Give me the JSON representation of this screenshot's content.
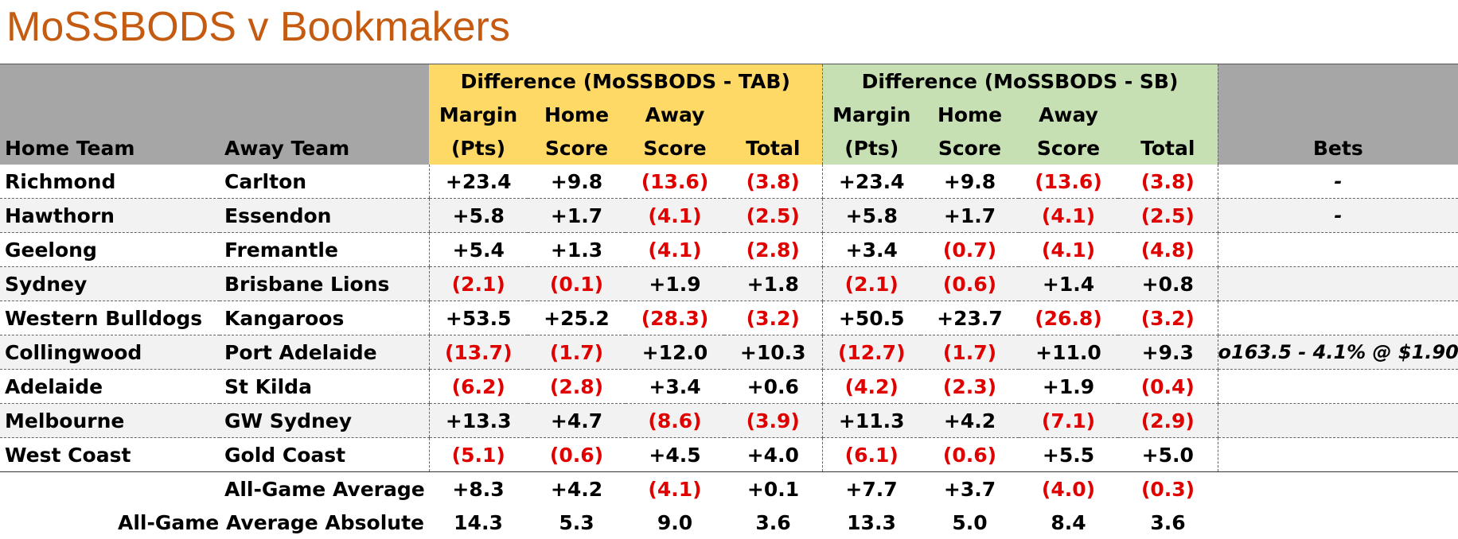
{
  "title": "MoSSBODS v Bookmakers",
  "headers": {
    "group_tab": "Difference (MoSSBODS - TAB)",
    "group_sb": "Difference (MoSSBODS - SB)",
    "margin_top": "Margin",
    "margin_bottom": "(Pts)",
    "home_top": "Home",
    "home_bottom": "Score",
    "away_top": "Away",
    "away_bottom": "Score",
    "total": "Total",
    "home_team": "Home Team",
    "away_team": "Away Team",
    "bets": "Bets"
  },
  "rows": [
    {
      "home": "Richmond",
      "away": "Carlton",
      "tab": [
        "+23.4",
        "+9.8",
        "(13.6)",
        "(3.8)"
      ],
      "sb": [
        "+23.4",
        "+9.8",
        "(13.6)",
        "(3.8)"
      ],
      "bets": "-"
    },
    {
      "home": "Hawthorn",
      "away": "Essendon",
      "tab": [
        "+5.8",
        "+1.7",
        "(4.1)",
        "(2.5)"
      ],
      "sb": [
        "+5.8",
        "+1.7",
        "(4.1)",
        "(2.5)"
      ],
      "bets": "-"
    },
    {
      "home": "Geelong",
      "away": "Fremantle",
      "tab": [
        "+5.4",
        "+1.3",
        "(4.1)",
        "(2.8)"
      ],
      "sb": [
        "+3.4",
        "(0.7)",
        "(4.1)",
        "(4.8)"
      ],
      "bets": ""
    },
    {
      "home": "Sydney",
      "away": "Brisbane Lions",
      "tab": [
        "(2.1)",
        "(0.1)",
        "+1.9",
        "+1.8"
      ],
      "sb": [
        "(2.1)",
        "(0.6)",
        "+1.4",
        "+0.8"
      ],
      "bets": ""
    },
    {
      "home": "Western Bulldogs",
      "away": "Kangaroos",
      "tab": [
        "+53.5",
        "+25.2",
        "(28.3)",
        "(3.2)"
      ],
      "sb": [
        "+50.5",
        "+23.7",
        "(26.8)",
        "(3.2)"
      ],
      "bets": ""
    },
    {
      "home": "Collingwood",
      "away": "Port Adelaide",
      "tab": [
        "(13.7)",
        "(1.7)",
        "+12.0",
        "+10.3"
      ],
      "sb": [
        "(12.7)",
        "(1.7)",
        "+11.0",
        "+9.3"
      ],
      "bets": "o163.5 - 4.1% @ $1.90"
    },
    {
      "home": "Adelaide",
      "away": "St Kilda",
      "tab": [
        "(6.2)",
        "(2.8)",
        "+3.4",
        "+0.6"
      ],
      "sb": [
        "(4.2)",
        "(2.3)",
        "+1.9",
        "(0.4)"
      ],
      "bets": ""
    },
    {
      "home": "Melbourne",
      "away": "GW Sydney",
      "tab": [
        "+13.3",
        "+4.7",
        "(8.6)",
        "(3.9)"
      ],
      "sb": [
        "+11.3",
        "+4.2",
        "(7.1)",
        "(2.9)"
      ],
      "bets": ""
    },
    {
      "home": "West Coast",
      "away": "Gold Coast",
      "tab": [
        "(5.1)",
        "(0.6)",
        "+4.5",
        "+4.0"
      ],
      "sb": [
        "(6.1)",
        "(0.6)",
        "+5.5",
        "+5.0"
      ],
      "bets": ""
    }
  ],
  "summary": [
    {
      "label": "All-Game Average",
      "tab": [
        "+8.3",
        "+4.2",
        "(4.1)",
        "+0.1"
      ],
      "sb": [
        "+7.7",
        "+3.7",
        "(4.0)",
        "(0.3)"
      ]
    },
    {
      "label": "All-Game Average Absolute",
      "tab": [
        "14.3",
        "5.3",
        "9.0",
        "3.6"
      ],
      "sb": [
        "13.3",
        "5.0",
        "8.4",
        "3.6"
      ]
    }
  ],
  "colors": {
    "title": "#c55a11",
    "tab_header": "#ffd966",
    "sb_header": "#c6e0b4",
    "team_header": "#a6a6a6",
    "negative": "#e00000"
  }
}
